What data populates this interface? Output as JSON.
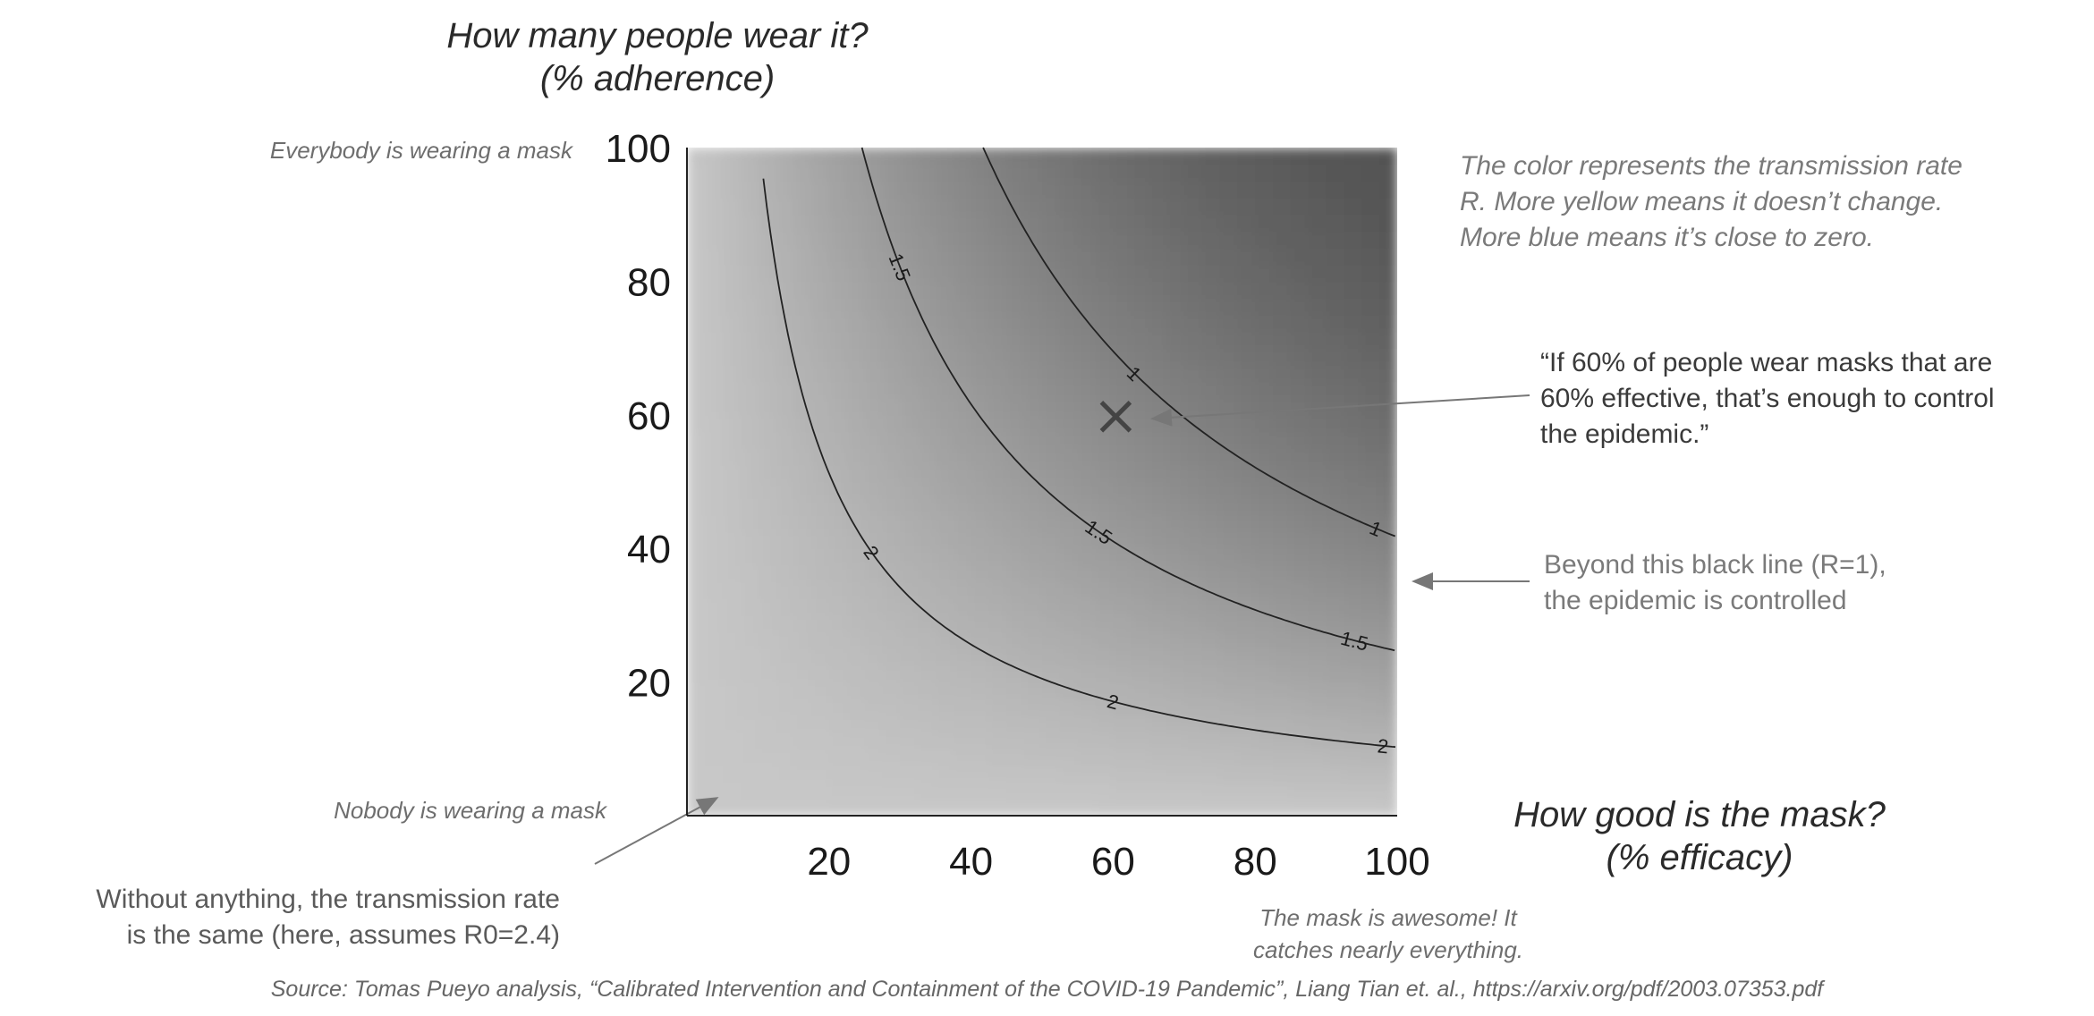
{
  "chart_data": {
    "type": "heatmap",
    "title": "",
    "x_label_line1": "How good is the mask?",
    "x_label_line2": "(% efficacy)",
    "y_label_line1": "How many people wear it?",
    "y_label_line2": "(% adherence)",
    "xlim": [
      0,
      100
    ],
    "ylim": [
      0,
      100
    ],
    "x_ticks": [
      20,
      40,
      60,
      80,
      100
    ],
    "y_ticks": [
      20,
      40,
      60,
      80,
      100
    ],
    "R0": 2.4,
    "z_label": "R",
    "color_note": "gray: light = unchanged R, dark = close to zero",
    "contours": [
      {
        "level": 2,
        "label": "2"
      },
      {
        "level": 1.5,
        "label": "1.5"
      },
      {
        "level": 1,
        "label": "1"
      }
    ],
    "marker": {
      "x": 60,
      "y": 60,
      "symbol": "x"
    }
  },
  "annotations": {
    "everybody": "Everybody is wearing a mask",
    "nobody": "Nobody is wearing a mask",
    "without_line1": "Without anything, the transmission rate",
    "without_line2": "is the same (here, assumes R0=2.4)",
    "color_line1": "The color represents the transmission rate",
    "color_line2": "R. More yellow means it doesn’t change.",
    "color_line3": "More blue means it’s close to zero.",
    "quote_line1": "“If 60% of people wear masks that are",
    "quote_line2": "60% effective, that’s enough to control",
    "quote_line3": "the epidemic.”",
    "beyond_line1": "Beyond this black line (R=1),",
    "beyond_line2": "the epidemic is controlled",
    "awesome_line1": "The mask is awesome! It",
    "awesome_line2": "catches nearly everything."
  },
  "source": "Source: Tomas Pueyo analysis, “Calibrated Intervention and Containment of the COVID-19 Pandemic”, Liang Tian et. al., https://arxiv.org/pdf/2003.07353.pdf"
}
